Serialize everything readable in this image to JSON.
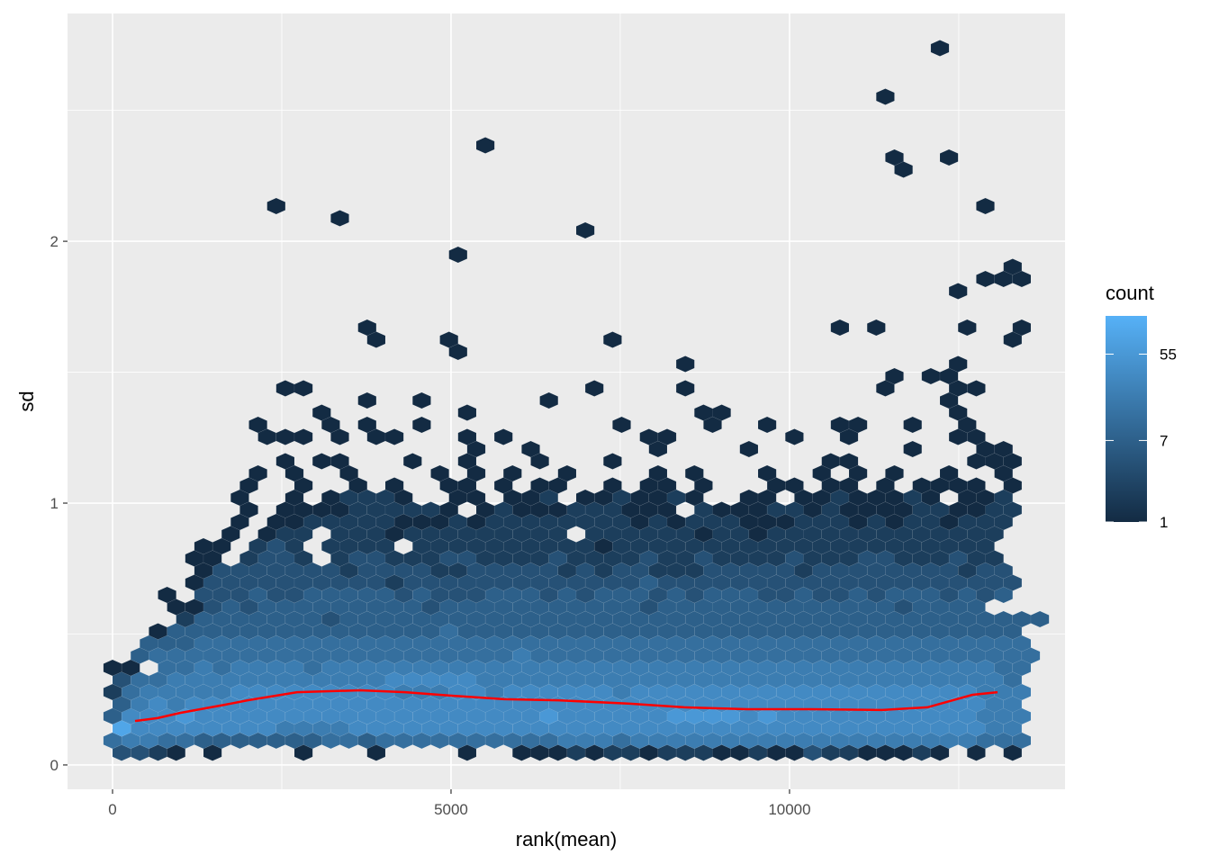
{
  "chart_data": {
    "type": "heatmap",
    "subtype": "hexbin",
    "xlabel": "rank(mean)",
    "ylabel": "sd",
    "xlim": [
      -665,
      14070
    ],
    "ylim": [
      -0.093,
      2.87
    ],
    "x_ticks": [
      0,
      5000,
      10000
    ],
    "x_tick_labels": [
      "0",
      "5000",
      "10000"
    ],
    "y_ticks": [
      0,
      1,
      2
    ],
    "y_tick_labels": [
      "0",
      "1",
      "2"
    ],
    "grid": true,
    "legend": {
      "title": "count",
      "placement": "right",
      "scale": "log",
      "breaks": [
        1,
        7,
        55
      ],
      "break_labels": [
        "1",
        "7",
        "55"
      ],
      "max_count": 137,
      "low_color": "#132B43",
      "high_color": "#56B1F7"
    },
    "hex_count_key": {
      "1": 1,
      "2": 2,
      "3": 4,
      "4": 7,
      "5": 12,
      "6": 20,
      "7": 33,
      "8": 55,
      "9": 90
    },
    "hex_rows_from_bottom": [
      "",
      "3321.1....1...1....1..111212212221121132211121 1.1.",
      "566554444444554555555555566656666666666666666666555",
      "97777777766667777777777777777777777777777777777766",
      "477787777777777777777777877777788887877777777777666",
      "46767777777777777777777777777777777777777777777766",
      "256666677777777766677677777767777777777777777777666",
      "35566666666666677777666666666666666666666666666665",
      "11.556566665666666666666666666666666666666666666655",
      ".45555555555555555555565555555555555555555555555555",
      "..4445555555555555555555555555555555555555555555555",
      "..144444444444444454444444444444444444444444444444",
      "....244444443444444444444444444444444444444444444444",
      "...113434444444443444444444443444444444444434444",
      "...1.333433444443433344434344434344433433434443434",
      "....1333333333323333333333333433333333333333333333",
      ".....133333332333322333332323322233333233333333233",
      "....11.2332.2332223322223222232232222322233222322",
      ".....11.232.2222.22222222221222222222222222222222",
      "......1.122.2221222222222.22222212212222222222222",
      ".......1.11222221112122222222121222111222121221222",
      ".......1.1111222221.12111222111.211122121111221122",
      ".......1..1.12221..11.112.1121121..11.11211121.112",
      ".......1..1..1.1..11.1.11..1.11.1...11.11.1.1111.1",
      "........1.1..1....1.1.1..1....1.1...1..1.1.1..1..1"
    ],
    "sparse_hexes": [
      [
        2421,
        2.13
      ],
      [
        3352,
        2.09
      ],
      [
        5506,
        2.37
      ],
      [
        12209,
        2.74
      ],
      [
        11411,
        2.55
      ],
      [
        11517,
        2.32
      ],
      [
        11677,
        2.27
      ],
      [
        12342,
        2.32
      ],
      [
        6969,
        2.04
      ],
      [
        5107,
        1.95
      ],
      [
        12874,
        2.13
      ],
      [
        12874,
        1.86
      ],
      [
        13140,
        1.86
      ],
      [
        13273,
        1.9
      ],
      [
        13406,
        1.86
      ],
      [
        12475,
        1.81
      ],
      [
        12608,
        1.67
      ],
      [
        13406,
        1.67
      ],
      [
        13273,
        1.63
      ],
      [
        11411,
        1.67
      ],
      [
        10746,
        1.67
      ],
      [
        3750,
        1.67
      ],
      [
        3884,
        1.63
      ],
      [
        4948,
        1.63
      ],
      [
        5107,
        1.58
      ],
      [
        7368,
        1.63
      ],
      [
        8432,
        1.53
      ],
      [
        8432,
        1.44
      ],
      [
        7102,
        1.44
      ],
      [
        6437,
        1.39
      ],
      [
        3750,
        1.39
      ],
      [
        4549,
        1.39
      ],
      [
        2554,
        1.44
      ],
      [
        2820,
        1.44
      ],
      [
        11411,
        1.44
      ],
      [
        11544,
        1.48
      ],
      [
        12076,
        1.48
      ],
      [
        12342,
        1.48
      ],
      [
        12475,
        1.53
      ],
      [
        12475,
        1.44
      ],
      [
        12741,
        1.44
      ],
      [
        12342,
        1.39
      ],
      [
        12475,
        1.35
      ],
      [
        12608,
        1.3
      ],
      [
        12475,
        1.25
      ],
      [
        3086,
        1.35
      ],
      [
        3219,
        1.3
      ],
      [
        3352,
        1.25
      ],
      [
        3750,
        1.3
      ],
      [
        3884,
        1.25
      ],
      [
        4150,
        1.25
      ],
      [
        4549,
        1.3
      ],
      [
        2155,
        1.3
      ],
      [
        2288,
        1.25
      ],
      [
        2554,
        1.25
      ],
      [
        2820,
        1.25
      ],
      [
        3086,
        1.16
      ],
      [
        3352,
        1.16
      ],
      [
        2554,
        1.16
      ],
      [
        5240,
        1.35
      ],
      [
        5240,
        1.25
      ],
      [
        5373,
        1.21
      ],
      [
        5240,
        1.16
      ],
      [
        5772,
        1.25
      ],
      [
        6171,
        1.21
      ],
      [
        6304,
        1.16
      ],
      [
        7501,
        1.3
      ],
      [
        7368,
        1.16
      ],
      [
        7900,
        1.25
      ],
      [
        8033,
        1.21
      ],
      [
        8166,
        1.25
      ],
      [
        8698,
        1.35
      ],
      [
        8964,
        1.35
      ],
      [
        8831,
        1.3
      ],
      [
        9363,
        1.21
      ],
      [
        10028,
        1.25
      ],
      [
        9682,
        1.3
      ],
      [
        10746,
        1.3
      ],
      [
        11012,
        1.3
      ],
      [
        10879,
        1.25
      ],
      [
        10480,
        1.16
      ],
      [
        10879,
        1.16
      ],
      [
        11810,
        1.3
      ],
      [
        11810,
        1.21
      ],
      [
        12874,
        1.21
      ],
      [
        13140,
        1.21
      ],
      [
        13273,
        1.16
      ],
      [
        13007,
        1.16
      ],
      [
        12741,
        1.16
      ],
      [
        12874,
        1.25
      ],
      [
        4415,
        1.16
      ],
      [
        12608,
        1.35
      ]
    ],
    "trend_line": {
      "color": "#FF0000",
      "x": [
        332,
        665,
        997,
        1662,
        1995,
        2726,
        3657,
        4322,
        4987,
        5785,
        6583,
        7647,
        8445,
        9376,
        10307,
        11371,
        12036,
        12701,
        13073
      ],
      "y": [
        0.168,
        0.179,
        0.199,
        0.23,
        0.247,
        0.278,
        0.285,
        0.278,
        0.265,
        0.251,
        0.247,
        0.234,
        0.22,
        0.213,
        0.213,
        0.21,
        0.22,
        0.268,
        0.278
      ]
    }
  }
}
